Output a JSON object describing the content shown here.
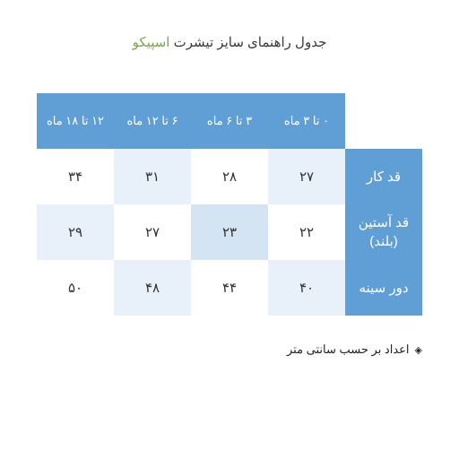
{
  "title_prefix": "جدول راهنمای سایز تیشرت ",
  "title_brand": "اسپیکو",
  "table": {
    "type": "table",
    "background_color": "#ffffff",
    "header_bg": "#5f9fd6",
    "header_fg": "#ffffff",
    "cell_colors": {
      "white": "#ffffff",
      "light": "#e8f0f9",
      "mid": "#d4e4f3"
    },
    "text_color": "#333333",
    "font_size_header": 13,
    "font_size_cell": 15,
    "columns": [
      "۰ تا ۳ ماه",
      "۳ تا ۶ ماه",
      "۶ تا ۱۲ ماه",
      "۱۲ تا ۱۸ ماه"
    ],
    "rows": [
      {
        "label": "قد کار",
        "cells": [
          {
            "value": "۲۷",
            "shade": "light"
          },
          {
            "value": "۲۸",
            "shade": "white"
          },
          {
            "value": "۳۱",
            "shade": "light"
          },
          {
            "value": "۳۴",
            "shade": "white"
          }
        ]
      },
      {
        "label": "قد آستین (بلند)",
        "cells": [
          {
            "value": "۲۲",
            "shade": "white"
          },
          {
            "value": "۲۳",
            "shade": "mid"
          },
          {
            "value": "۲۷",
            "shade": "white"
          },
          {
            "value": "۲۹",
            "shade": "light"
          }
        ]
      },
      {
        "label": "دور سینه",
        "cells": [
          {
            "value": "۴۰",
            "shade": "light"
          },
          {
            "value": "۴۴",
            "shade": "white"
          },
          {
            "value": "۴۸",
            "shade": "light"
          },
          {
            "value": "۵۰",
            "shade": "white"
          }
        ]
      }
    ]
  },
  "footnote": "اعداد بر حسب سانتی متر"
}
